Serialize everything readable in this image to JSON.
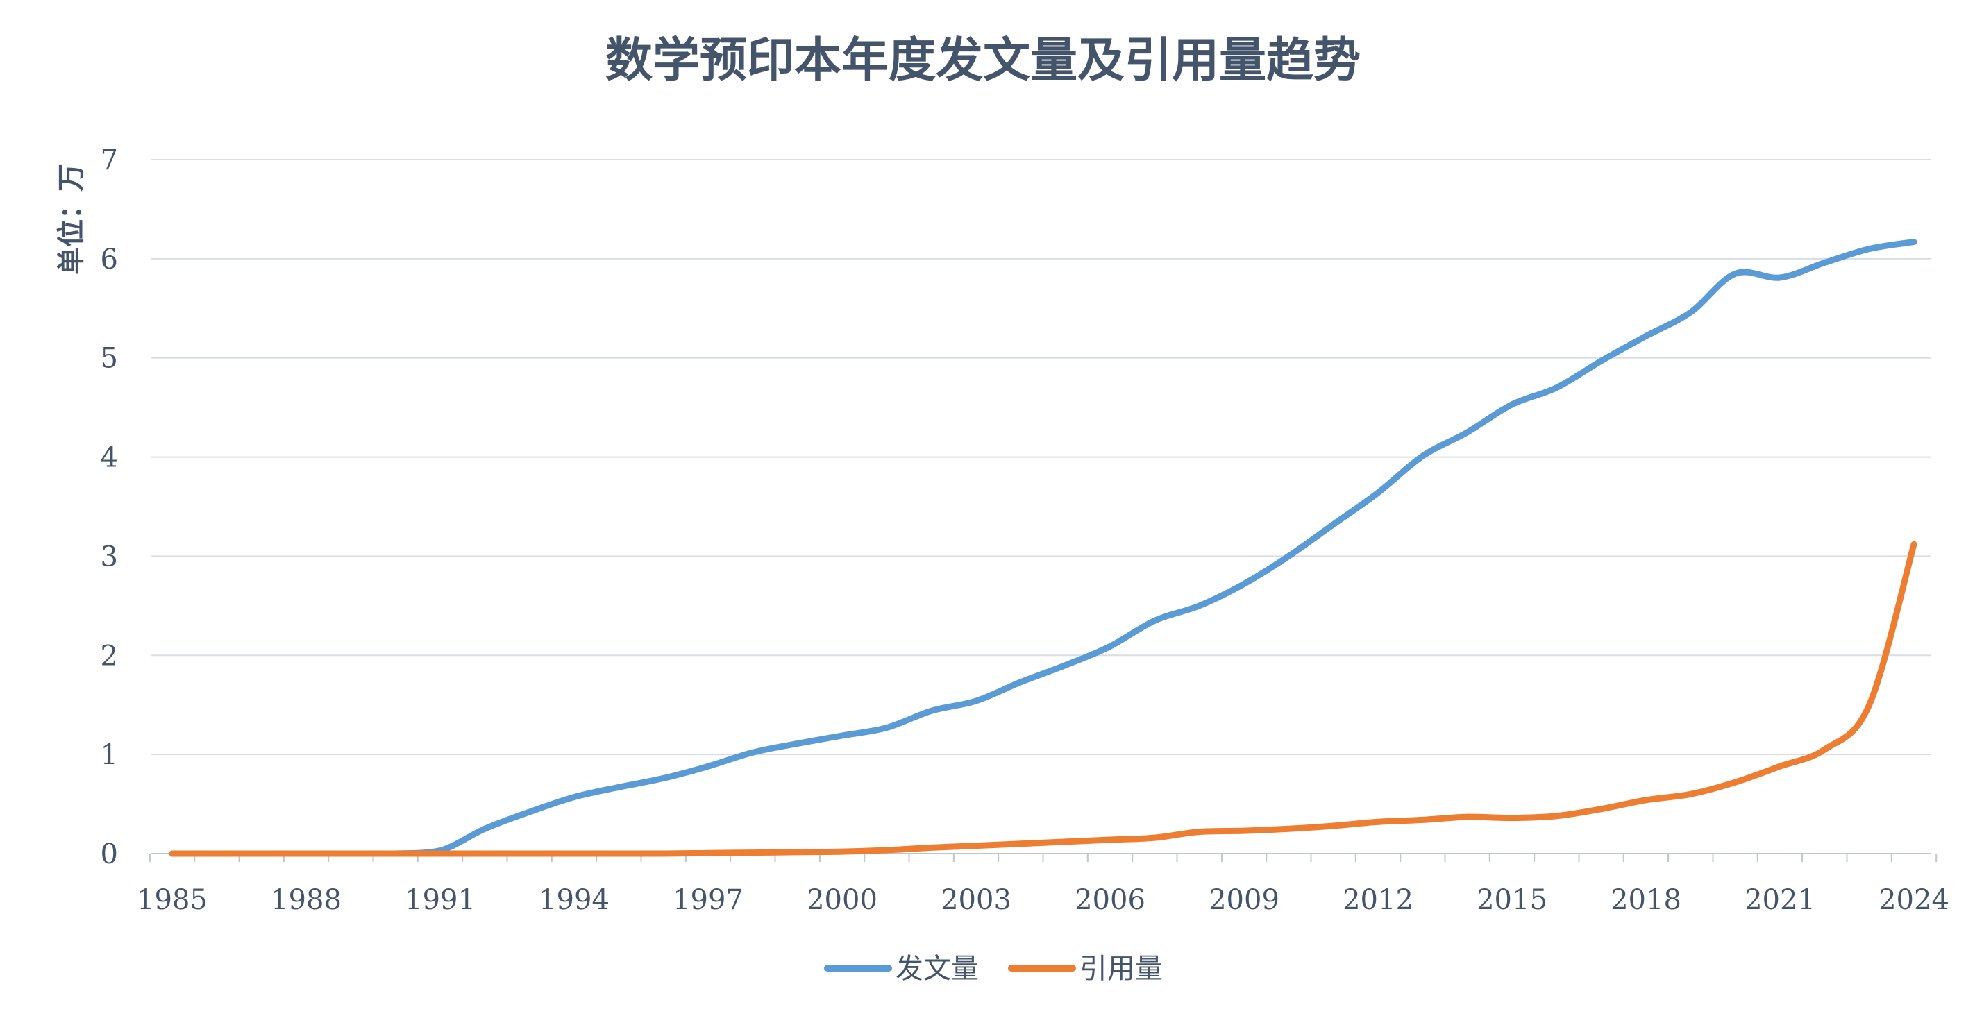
{
  "chart_data": {
    "type": "line",
    "title": "数学预印本年度发文量及引用量趋势",
    "ylabel": "单位：万",
    "xlabel": "",
    "x": [
      1985,
      1986,
      1987,
      1988,
      1989,
      1990,
      1991,
      1992,
      1993,
      1994,
      1995,
      1996,
      1997,
      1998,
      1999,
      2000,
      2001,
      2002,
      2003,
      2004,
      2005,
      2006,
      2007,
      2008,
      2009,
      2010,
      2011,
      2012,
      2013,
      2014,
      2015,
      2016,
      2017,
      2018,
      2019,
      2020,
      2021,
      2022,
      2023,
      2024
    ],
    "x_tick_labels": [
      "1985",
      "1988",
      "1991",
      "1994",
      "1997",
      "2000",
      "2003",
      "2006",
      "2009",
      "2012",
      "2015",
      "2018",
      "2021",
      "2024"
    ],
    "ylim": [
      0,
      7
    ],
    "y_ticks": [
      0,
      1,
      2,
      3,
      4,
      5,
      6,
      7
    ],
    "grid": true,
    "legend_position": "bottom",
    "series": [
      {
        "name": "发文量",
        "color": "#5b9bd5",
        "values": [
          0,
          0,
          0,
          0,
          0,
          0,
          0.03,
          0.25,
          0.42,
          0.57,
          0.67,
          0.76,
          0.88,
          1.02,
          1.11,
          1.19,
          1.27,
          1.44,
          1.54,
          1.73,
          1.9,
          2.09,
          2.35,
          2.5,
          2.72,
          3.0,
          3.32,
          3.64,
          4.01,
          4.25,
          4.53,
          4.7,
          4.97,
          5.22,
          5.46,
          5.85,
          5.81,
          5.96,
          6.1,
          6.17
        ]
      },
      {
        "name": "引用量",
        "color": "#ed7d31",
        "values": [
          0,
          0,
          0,
          0,
          0,
          0,
          0,
          0,
          0,
          0,
          0,
          0,
          0.005,
          0.01,
          0.015,
          0.02,
          0.035,
          0.06,
          0.08,
          0.1,
          0.12,
          0.14,
          0.16,
          0.22,
          0.23,
          0.25,
          0.28,
          0.32,
          0.34,
          0.37,
          0.36,
          0.38,
          0.45,
          0.54,
          0.6,
          0.72,
          0.88,
          1.05,
          1.5,
          3.12
        ]
      }
    ]
  }
}
